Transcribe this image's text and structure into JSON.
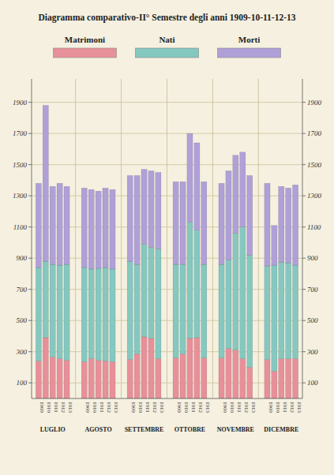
{
  "chart_data": {
    "type": "bar",
    "title": "Diagramma comparativo-II° Semestre degli anni 1909-10-11-12-13",
    "stacked": true,
    "grid": true,
    "groups": [
      "LUGLIO",
      "AGOSTO",
      "SETTEMBRE",
      "OTTOBRE",
      "NOVEMBRE",
      "DICEMBRE"
    ],
    "categories": [
      "1909",
      "1910",
      "1911",
      "1912",
      "1913",
      "1909",
      "1910",
      "1911",
      "1912",
      "1913",
      "1909",
      "1910",
      "1911",
      "1912",
      "1913",
      "1909",
      "1910",
      "1911",
      "1912",
      "1913",
      "1909",
      "1910",
      "1911",
      "1912",
      "1913",
      "1909",
      "1910",
      "1911",
      "1912",
      "1913"
    ],
    "series": [
      {
        "name": "Matrimoni",
        "color": "#e8909a",
        "values": [
          240,
          390,
          265,
          255,
          245,
          235,
          255,
          245,
          240,
          235,
          250,
          285,
          395,
          385,
          255,
          260,
          285,
          385,
          390,
          260,
          260,
          320,
          310,
          255,
          200,
          250,
          175,
          255,
          255,
          255
        ]
      },
      {
        "name": "Nati",
        "color": "#85c8c0",
        "values": [
          600,
          490,
          595,
          600,
          615,
          605,
          575,
          590,
          600,
          595,
          630,
          575,
          595,
          585,
          705,
          600,
          575,
          745,
          690,
          600,
          600,
          570,
          750,
          845,
          720,
          600,
          680,
          620,
          615,
          600
        ]
      },
      {
        "name": "Morti",
        "color": "#b0a0d8",
        "values": [
          540,
          1000,
          500,
          525,
          500,
          510,
          510,
          495,
          510,
          510,
          550,
          570,
          480,
          490,
          490,
          530,
          530,
          570,
          560,
          530,
          520,
          570,
          500,
          480,
          510,
          530,
          255,
          485,
          480,
          515
        ]
      }
    ],
    "ylim": [
      0,
      2050
    ],
    "yticks": [
      100,
      300,
      500,
      700,
      900,
      1100,
      1300,
      1500,
      1700,
      1900
    ],
    "y2lim": [
      0,
      2050
    ],
    "y2ticks": [
      100,
      300,
      500,
      700,
      900,
      1100,
      1300,
      1500,
      1700,
      1900
    ]
  }
}
